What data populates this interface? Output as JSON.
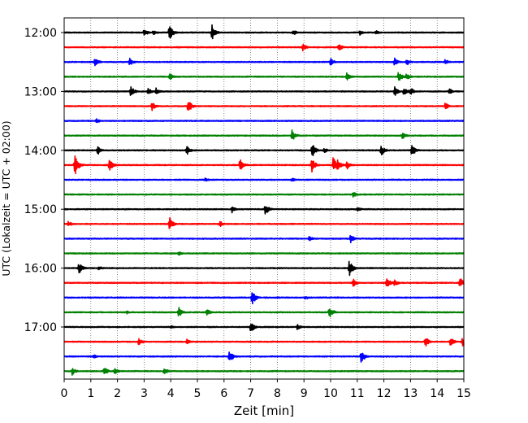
{
  "chart_data": {
    "type": "line",
    "subtype": "helicorder",
    "xlabel": "Zeit  [min]",
    "ylabel": "UTC (Lokalzeit = UTC + 02:00)",
    "xlim": [
      0,
      15
    ],
    "x_ticks": [
      "0",
      "1",
      "2",
      "3",
      "4",
      "5",
      "6",
      "7",
      "8",
      "9",
      "10",
      "11",
      "12",
      "13",
      "14",
      "15"
    ],
    "y_tick_labels": [
      "12:00",
      "13:00",
      "14:00",
      "15:00",
      "16:00",
      "17:00"
    ],
    "grid": "vertical dotted at every minute",
    "trace_interval_minutes": 15,
    "trace_colors": [
      "#000000",
      "#ff0000",
      "#0000ff",
      "#008000"
    ],
    "traces": [
      {
        "time": "12:00",
        "color": "#000000",
        "events": [
          [
            3.0,
            0.45
          ],
          [
            3.35,
            0.35
          ],
          [
            3.95,
            1.0
          ],
          [
            5.55,
            0.95
          ],
          [
            8.6,
            0.35
          ],
          [
            11.1,
            0.3
          ],
          [
            11.7,
            0.25
          ]
        ]
      },
      {
        "time": "12:15",
        "color": "#ff0000",
        "events": [
          [
            8.95,
            0.45
          ],
          [
            10.3,
            0.5
          ]
        ]
      },
      {
        "time": "12:30",
        "color": "#0000ff",
        "events": [
          [
            1.15,
            0.55
          ],
          [
            2.45,
            0.5
          ],
          [
            10.0,
            0.45
          ],
          [
            12.4,
            0.5
          ],
          [
            12.85,
            0.45
          ],
          [
            14.3,
            0.35
          ]
        ]
      },
      {
        "time": "12:45",
        "color": "#008000",
        "events": [
          [
            3.95,
            0.45
          ],
          [
            10.6,
            0.55
          ],
          [
            12.55,
            0.65
          ],
          [
            12.85,
            0.4
          ]
        ]
      },
      {
        "time": "13:00",
        "color": "#000000",
        "events": [
          [
            2.5,
            0.7
          ],
          [
            3.15,
            0.45
          ],
          [
            3.45,
            0.4
          ],
          [
            12.4,
            0.55
          ],
          [
            12.75,
            0.5
          ],
          [
            13.0,
            0.45
          ],
          [
            14.45,
            0.35
          ]
        ]
      },
      {
        "time": "13:15",
        "color": "#ff0000",
        "events": [
          [
            3.3,
            0.5
          ],
          [
            4.65,
            0.8
          ],
          [
            14.3,
            0.4
          ]
        ]
      },
      {
        "time": "13:30",
        "color": "#0000ff",
        "events": [
          [
            1.2,
            0.3
          ]
        ]
      },
      {
        "time": "13:45",
        "color": "#008000",
        "events": [
          [
            8.55,
            0.65
          ],
          [
            12.7,
            0.45
          ]
        ]
      },
      {
        "time": "14:00",
        "color": "#000000",
        "events": [
          [
            1.25,
            0.6
          ],
          [
            4.6,
            0.55
          ],
          [
            9.3,
            0.9
          ],
          [
            9.75,
            0.35
          ],
          [
            11.9,
            0.65
          ],
          [
            13.05,
            0.75
          ]
        ]
      },
      {
        "time": "14:15",
        "color": "#ff0000",
        "events": [
          [
            0.4,
            1.2
          ],
          [
            1.7,
            0.8
          ],
          [
            6.6,
            0.85
          ],
          [
            9.3,
            0.9
          ],
          [
            10.1,
            0.95
          ],
          [
            10.25,
            0.85
          ],
          [
            10.6,
            0.55
          ]
        ]
      },
      {
        "time": "14:30",
        "color": "#0000ff",
        "events": [
          [
            5.3,
            0.25
          ],
          [
            8.55,
            0.25
          ]
        ]
      },
      {
        "time": "14:45",
        "color": "#008000",
        "events": [
          [
            10.85,
            0.35
          ]
        ]
      },
      {
        "time": "15:00",
        "color": "#000000",
        "events": [
          [
            6.3,
            0.4
          ],
          [
            7.55,
            0.65
          ],
          [
            11.0,
            0.3
          ]
        ]
      },
      {
        "time": "15:15",
        "color": "#ff0000",
        "events": [
          [
            0.15,
            0.35
          ],
          [
            3.95,
            0.85
          ],
          [
            5.85,
            0.35
          ]
        ]
      },
      {
        "time": "15:30",
        "color": "#0000ff",
        "events": [
          [
            9.2,
            0.3
          ],
          [
            10.75,
            0.5
          ]
        ]
      },
      {
        "time": "15:45",
        "color": "#008000",
        "events": [
          [
            4.3,
            0.25
          ]
        ]
      },
      {
        "time": "16:00",
        "color": "#000000",
        "events": [
          [
            0.55,
            0.7
          ],
          [
            1.3,
            0.3
          ],
          [
            10.7,
            1.05
          ]
        ]
      },
      {
        "time": "16:15",
        "color": "#ff0000",
        "events": [
          [
            10.85,
            0.5
          ],
          [
            12.1,
            0.75
          ],
          [
            12.4,
            0.4
          ],
          [
            14.85,
            0.65
          ]
        ]
      },
      {
        "time": "16:30",
        "color": "#0000ff",
        "events": [
          [
            7.05,
            0.9
          ],
          [
            9.05,
            0.25
          ]
        ]
      },
      {
        "time": "16:45",
        "color": "#008000",
        "events": [
          [
            4.3,
            0.6
          ],
          [
            5.35,
            0.45
          ],
          [
            9.95,
            0.8
          ],
          [
            2.35,
            0.2
          ]
        ]
      },
      {
        "time": "17:00",
        "color": "#000000",
        "events": [
          [
            7.0,
            0.7
          ],
          [
            8.75,
            0.35
          ],
          [
            4.0,
            0.2
          ]
        ]
      },
      {
        "time": "17:15",
        "color": "#ff0000",
        "events": [
          [
            2.8,
            0.45
          ],
          [
            13.55,
            0.65
          ],
          [
            14.5,
            0.55
          ],
          [
            14.95,
            0.5
          ],
          [
            4.6,
            0.3
          ]
        ]
      },
      {
        "time": "17:30",
        "color": "#0000ff",
        "events": [
          [
            6.2,
            0.75
          ],
          [
            11.15,
            0.8
          ],
          [
            1.1,
            0.25
          ]
        ]
      },
      {
        "time": "17:45",
        "color": "#008000",
        "events": [
          [
            0.3,
            0.45
          ],
          [
            1.5,
            0.55
          ],
          [
            1.9,
            0.4
          ],
          [
            3.75,
            0.4
          ]
        ]
      }
    ]
  }
}
